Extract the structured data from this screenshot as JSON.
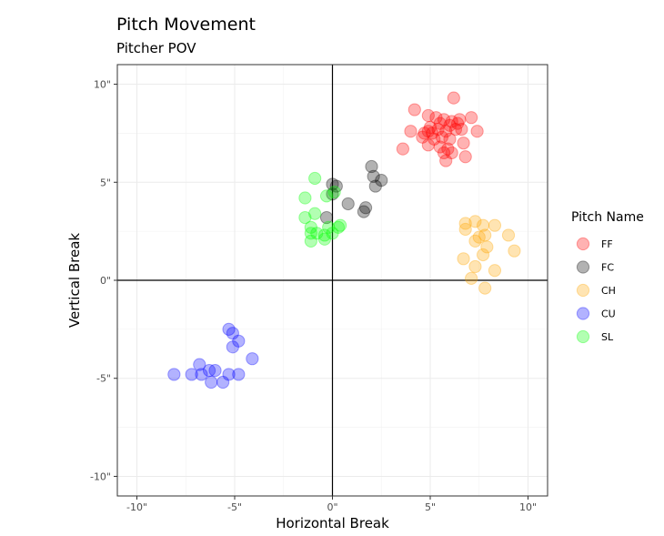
{
  "chart_data": {
    "type": "scatter",
    "title": "Pitch Movement",
    "subtitle": "Pitcher POV",
    "xlabel": "Horizontal Break",
    "ylabel": "Vertical Break",
    "xlim": [
      -11,
      11
    ],
    "ylim": [
      -11,
      11
    ],
    "x_ticks": [
      -10,
      -5,
      0,
      5,
      10
    ],
    "y_ticks": [
      -10,
      -5,
      0,
      5,
      10
    ],
    "x_tick_labels": [
      "-10\"",
      "-5\"",
      "0\"",
      "5\"",
      "10\""
    ],
    "y_tick_labels": [
      "-10\"",
      "-5\"",
      "0\"",
      "5\"",
      "10\""
    ],
    "grid": true,
    "legend_title": "Pitch Name",
    "legend_position": "right",
    "series": [
      {
        "name": "FF",
        "color": "#ff0000",
        "points": [
          [
            6.2,
            9.3
          ],
          [
            4.2,
            8.7
          ],
          [
            4.9,
            8.4
          ],
          [
            5.3,
            8.3
          ],
          [
            5.7,
            8.2
          ],
          [
            5.5,
            8.0
          ],
          [
            6.1,
            8.1
          ],
          [
            6.5,
            8.2
          ],
          [
            7.1,
            8.3
          ],
          [
            5.0,
            7.8
          ],
          [
            5.4,
            7.7
          ],
          [
            6.0,
            7.9
          ],
          [
            6.3,
            7.7
          ],
          [
            4.0,
            7.6
          ],
          [
            4.7,
            7.5
          ],
          [
            5.1,
            7.5
          ],
          [
            5.8,
            7.6
          ],
          [
            6.6,
            7.7
          ],
          [
            7.4,
            7.6
          ],
          [
            4.6,
            7.3
          ],
          [
            5.2,
            7.2
          ],
          [
            5.6,
            7.3
          ],
          [
            6.0,
            7.2
          ],
          [
            6.7,
            7.0
          ],
          [
            4.9,
            6.9
          ],
          [
            3.6,
            6.7
          ],
          [
            5.5,
            6.8
          ],
          [
            5.9,
            6.7
          ],
          [
            6.1,
            6.5
          ],
          [
            5.7,
            6.5
          ],
          [
            6.8,
            6.3
          ],
          [
            5.8,
            6.1
          ],
          [
            6.4,
            8.0
          ],
          [
            4.9,
            7.6
          ]
        ]
      },
      {
        "name": "FC",
        "color": "#000000",
        "points": [
          [
            2.0,
            5.8
          ],
          [
            2.1,
            5.3
          ],
          [
            2.5,
            5.1
          ],
          [
            2.2,
            4.8
          ],
          [
            0.0,
            4.9
          ],
          [
            0.2,
            4.8
          ],
          [
            0.0,
            4.4
          ],
          [
            0.8,
            3.9
          ],
          [
            1.7,
            3.7
          ],
          [
            1.6,
            3.5
          ],
          [
            -0.3,
            3.2
          ]
        ]
      },
      {
        "name": "CH",
        "color": "#ffa500",
        "points": [
          [
            6.8,
            2.9
          ],
          [
            7.3,
            3.0
          ],
          [
            7.7,
            2.8
          ],
          [
            8.3,
            2.8
          ],
          [
            9.0,
            2.3
          ],
          [
            6.8,
            2.6
          ],
          [
            7.5,
            2.2
          ],
          [
            7.8,
            2.3
          ],
          [
            7.3,
            2.0
          ],
          [
            7.9,
            1.7
          ],
          [
            9.3,
            1.5
          ],
          [
            7.7,
            1.3
          ],
          [
            6.7,
            1.1
          ],
          [
            7.3,
            0.7
          ],
          [
            8.3,
            0.5
          ],
          [
            7.1,
            0.1
          ],
          [
            7.8,
            -0.4
          ]
        ]
      },
      {
        "name": "CU",
        "color": "#0000ff",
        "points": [
          [
            -5.3,
            -2.5
          ],
          [
            -5.1,
            -2.7
          ],
          [
            -4.8,
            -3.1
          ],
          [
            -5.1,
            -3.4
          ],
          [
            -4.1,
            -4.0
          ],
          [
            -6.8,
            -4.3
          ],
          [
            -8.1,
            -4.8
          ],
          [
            -7.2,
            -4.8
          ],
          [
            -6.7,
            -4.8
          ],
          [
            -6.3,
            -4.6
          ],
          [
            -6.0,
            -4.6
          ],
          [
            -5.3,
            -4.8
          ],
          [
            -4.8,
            -4.8
          ],
          [
            -6.2,
            -5.2
          ],
          [
            -5.6,
            -5.2
          ]
        ]
      },
      {
        "name": "SL",
        "color": "#00ff00",
        "points": [
          [
            -0.9,
            5.2
          ],
          [
            -1.4,
            4.2
          ],
          [
            -0.3,
            4.3
          ],
          [
            0.1,
            4.5
          ],
          [
            -0.9,
            3.4
          ],
          [
            -1.4,
            3.2
          ],
          [
            -1.1,
            2.7
          ],
          [
            -0.2,
            2.7
          ],
          [
            0.3,
            2.7
          ],
          [
            0.4,
            2.8
          ],
          [
            -1.1,
            2.4
          ],
          [
            -0.8,
            2.4
          ],
          [
            -0.4,
            2.3
          ],
          [
            0.0,
            2.4
          ],
          [
            -0.4,
            2.1
          ],
          [
            -1.1,
            2.0
          ]
        ]
      }
    ]
  }
}
